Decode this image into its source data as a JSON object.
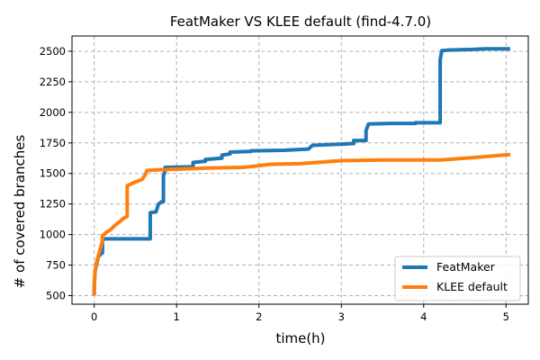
{
  "chart_data": {
    "type": "line",
    "title": "FeatMaker VS KLEE default (find-4.7.0)",
    "xlabel": "time(h)",
    "ylabel": "# of covered branches",
    "xlim": [
      -0.27,
      5.27
    ],
    "ylim": [
      430,
      2625
    ],
    "xticks": [
      0,
      1,
      2,
      3,
      4,
      5
    ],
    "yticks": [
      500,
      750,
      1000,
      1250,
      1500,
      1750,
      2000,
      2250,
      2500
    ],
    "grid": true,
    "legend_position": "lower-right",
    "series": [
      {
        "name": "FeatMaker",
        "color": "#1f77b4",
        "points": [
          [
            0,
            500
          ],
          [
            0,
            560
          ],
          [
            0.01,
            700
          ],
          [
            0.03,
            760
          ],
          [
            0.05,
            820
          ],
          [
            0.08,
            840
          ],
          [
            0.1,
            850
          ],
          [
            0.1,
            950
          ],
          [
            0.12,
            965
          ],
          [
            0.5,
            965
          ],
          [
            0.68,
            965
          ],
          [
            0.68,
            1180
          ],
          [
            0.75,
            1185
          ],
          [
            0.78,
            1250
          ],
          [
            0.82,
            1270
          ],
          [
            0.84,
            1270
          ],
          [
            0.84,
            1480
          ],
          [
            0.86,
            1520
          ],
          [
            0.86,
            1550
          ],
          [
            1.2,
            1555
          ],
          [
            1.2,
            1590
          ],
          [
            1.35,
            1600
          ],
          [
            1.35,
            1615
          ],
          [
            1.55,
            1625
          ],
          [
            1.55,
            1650
          ],
          [
            1.65,
            1660
          ],
          [
            1.65,
            1675
          ],
          [
            1.9,
            1680
          ],
          [
            1.9,
            1685
          ],
          [
            2.3,
            1690
          ],
          [
            2.6,
            1700
          ],
          [
            2.65,
            1730
          ],
          [
            3.0,
            1740
          ],
          [
            3.15,
            1745
          ],
          [
            3.15,
            1770
          ],
          [
            3.3,
            1770
          ],
          [
            3.3,
            1850
          ],
          [
            3.33,
            1905
          ],
          [
            3.6,
            1910
          ],
          [
            3.9,
            1910
          ],
          [
            3.9,
            1915
          ],
          [
            4.2,
            1915
          ],
          [
            4.2,
            2430
          ],
          [
            4.22,
            2505
          ],
          [
            4.3,
            2510
          ],
          [
            4.6,
            2515
          ],
          [
            4.75,
            2520
          ],
          [
            5.05,
            2520
          ]
        ]
      },
      {
        "name": "KLEE default",
        "color": "#ff7f0e",
        "points": [
          [
            0,
            500
          ],
          [
            0,
            600
          ],
          [
            0.01,
            700
          ],
          [
            0.03,
            780
          ],
          [
            0.06,
            850
          ],
          [
            0.1,
            950
          ],
          [
            0.1,
            990
          ],
          [
            0.15,
            1020
          ],
          [
            0.2,
            1040
          ],
          [
            0.25,
            1075
          ],
          [
            0.3,
            1100
          ],
          [
            0.35,
            1130
          ],
          [
            0.4,
            1150
          ],
          [
            0.4,
            1400
          ],
          [
            0.5,
            1430
          ],
          [
            0.58,
            1450
          ],
          [
            0.62,
            1490
          ],
          [
            0.64,
            1525
          ],
          [
            0.8,
            1530
          ],
          [
            1.0,
            1535
          ],
          [
            1.4,
            1545
          ],
          [
            1.8,
            1550
          ],
          [
            1.95,
            1560
          ],
          [
            2.15,
            1575
          ],
          [
            2.5,
            1580
          ],
          [
            3.0,
            1605
          ],
          [
            3.5,
            1610
          ],
          [
            4.2,
            1610
          ],
          [
            4.6,
            1630
          ],
          [
            5.05,
            1655
          ]
        ]
      }
    ]
  }
}
